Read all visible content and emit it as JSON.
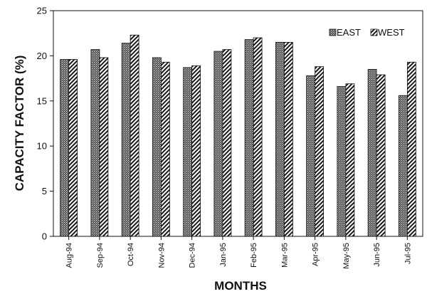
{
  "chart_data": {
    "type": "bar",
    "title": "",
    "xlabel": "MONTHS",
    "ylabel": "CAPACITY FACTOR (%)",
    "ylim": [
      0,
      25
    ],
    "yticks": [
      0,
      5,
      10,
      15,
      20,
      25
    ],
    "grid": false,
    "legend_position": "top-right",
    "categories": [
      "Aug-94",
      "Sep-94",
      "Oct-94",
      "Nov-94",
      "Dec-94",
      "Jan-95",
      "Feb-95",
      "Mar-95",
      "Apr-95",
      "May-95",
      "Jun-95",
      "Jul-95"
    ],
    "series": [
      {
        "name": "EAST",
        "pattern": "dotted-dark",
        "values": [
          19.6,
          20.7,
          21.4,
          19.8,
          18.7,
          20.5,
          21.8,
          21.5,
          17.8,
          16.6,
          18.5,
          15.6
        ]
      },
      {
        "name": "WEST",
        "pattern": "hatched",
        "values": [
          19.6,
          19.8,
          22.3,
          19.3,
          18.9,
          20.7,
          22.0,
          21.5,
          18.8,
          16.9,
          17.9,
          19.3
        ]
      }
    ]
  }
}
